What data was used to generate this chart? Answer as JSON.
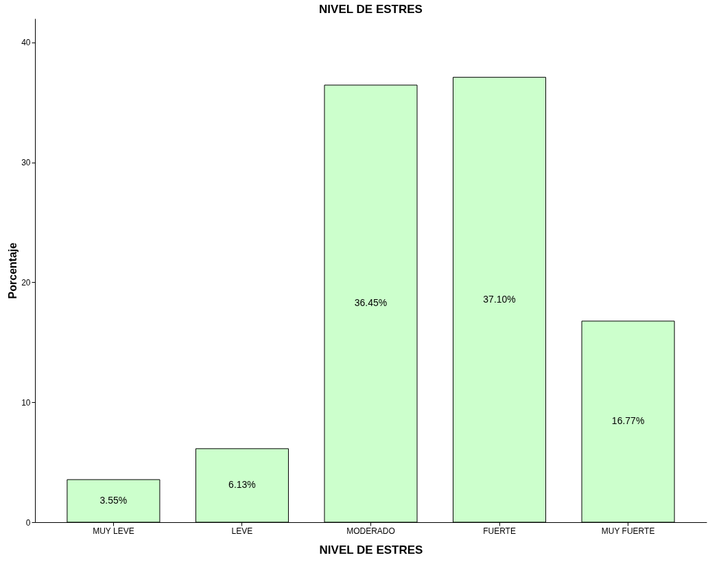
{
  "chart_data": {
    "type": "bar",
    "title": "NIVEL DE ESTRES",
    "xlabel": "NIVEL DE ESTRES",
    "ylabel": "Porcentaje",
    "categories": [
      "MUY LEVE",
      "LEVE",
      "MODERADO",
      "FUERTE",
      "MUY FUERTE"
    ],
    "values": [
      3.55,
      6.13,
      36.45,
      37.1,
      16.77
    ],
    "value_labels": [
      "3.55%",
      "6.13%",
      "36.45%",
      "37.10%",
      "16.77%"
    ],
    "color": "#ccffcc",
    "ylim": [
      0,
      42
    ],
    "yticks": [
      0,
      10,
      20,
      30,
      40
    ],
    "grid": false
  }
}
